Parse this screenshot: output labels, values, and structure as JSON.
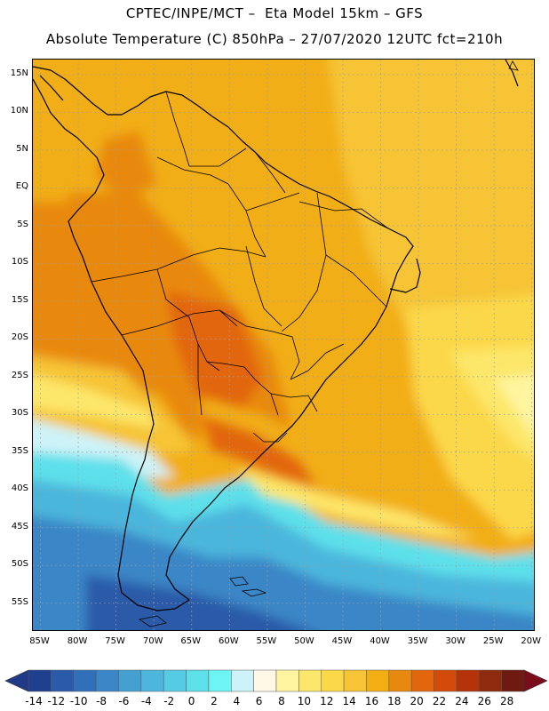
{
  "title_line1": "CPTEC/INPE/MCT –  Eta Model 15km – GFS",
  "title_line2": "Absolute Temperature (C) 850hPa – 27/07/2020 12UTC fct=210h",
  "lat_labels": [
    "15N",
    "10N",
    "5N",
    "EQ",
    "5S",
    "10S",
    "15S",
    "20S",
    "25S",
    "30S",
    "35S",
    "40S",
    "45S",
    "50S",
    "55S"
  ],
  "lon_labels": [
    "85W",
    "80W",
    "75W",
    "70W",
    "65W",
    "60W",
    "55W",
    "50W",
    "45W",
    "40W",
    "35W",
    "30W",
    "25W",
    "20W"
  ],
  "map_extent": {
    "lon_min": -86,
    "lon_max": -19.5,
    "lat_min": -58.8,
    "lat_max": 17
  },
  "colorbar": {
    "ticks": [
      "-14",
      "-12",
      "-10",
      "-8",
      "-6",
      "-4",
      "-2",
      "0",
      "2",
      "4",
      "6",
      "8",
      "10",
      "12",
      "14",
      "16",
      "18",
      "20",
      "22",
      "24",
      "26",
      "28"
    ],
    "colors": [
      "#1f3f8f",
      "#2a5aa8",
      "#3070b8",
      "#3a86c6",
      "#45a0d2",
      "#4cb6dc",
      "#55cbe4",
      "#5de0ea",
      "#6cf5f2",
      "#cdf3f8",
      "#fff8e6",
      "#fff5a0",
      "#fde76a",
      "#fbd848",
      "#f6c434",
      "#f2ae12",
      "#e8890f",
      "#e2660c",
      "#d44a0a",
      "#b43308",
      "#8e2a0e",
      "#6e1a10"
    ],
    "under_color": "#203a88",
    "over_color": "#7a0c1c"
  }
}
